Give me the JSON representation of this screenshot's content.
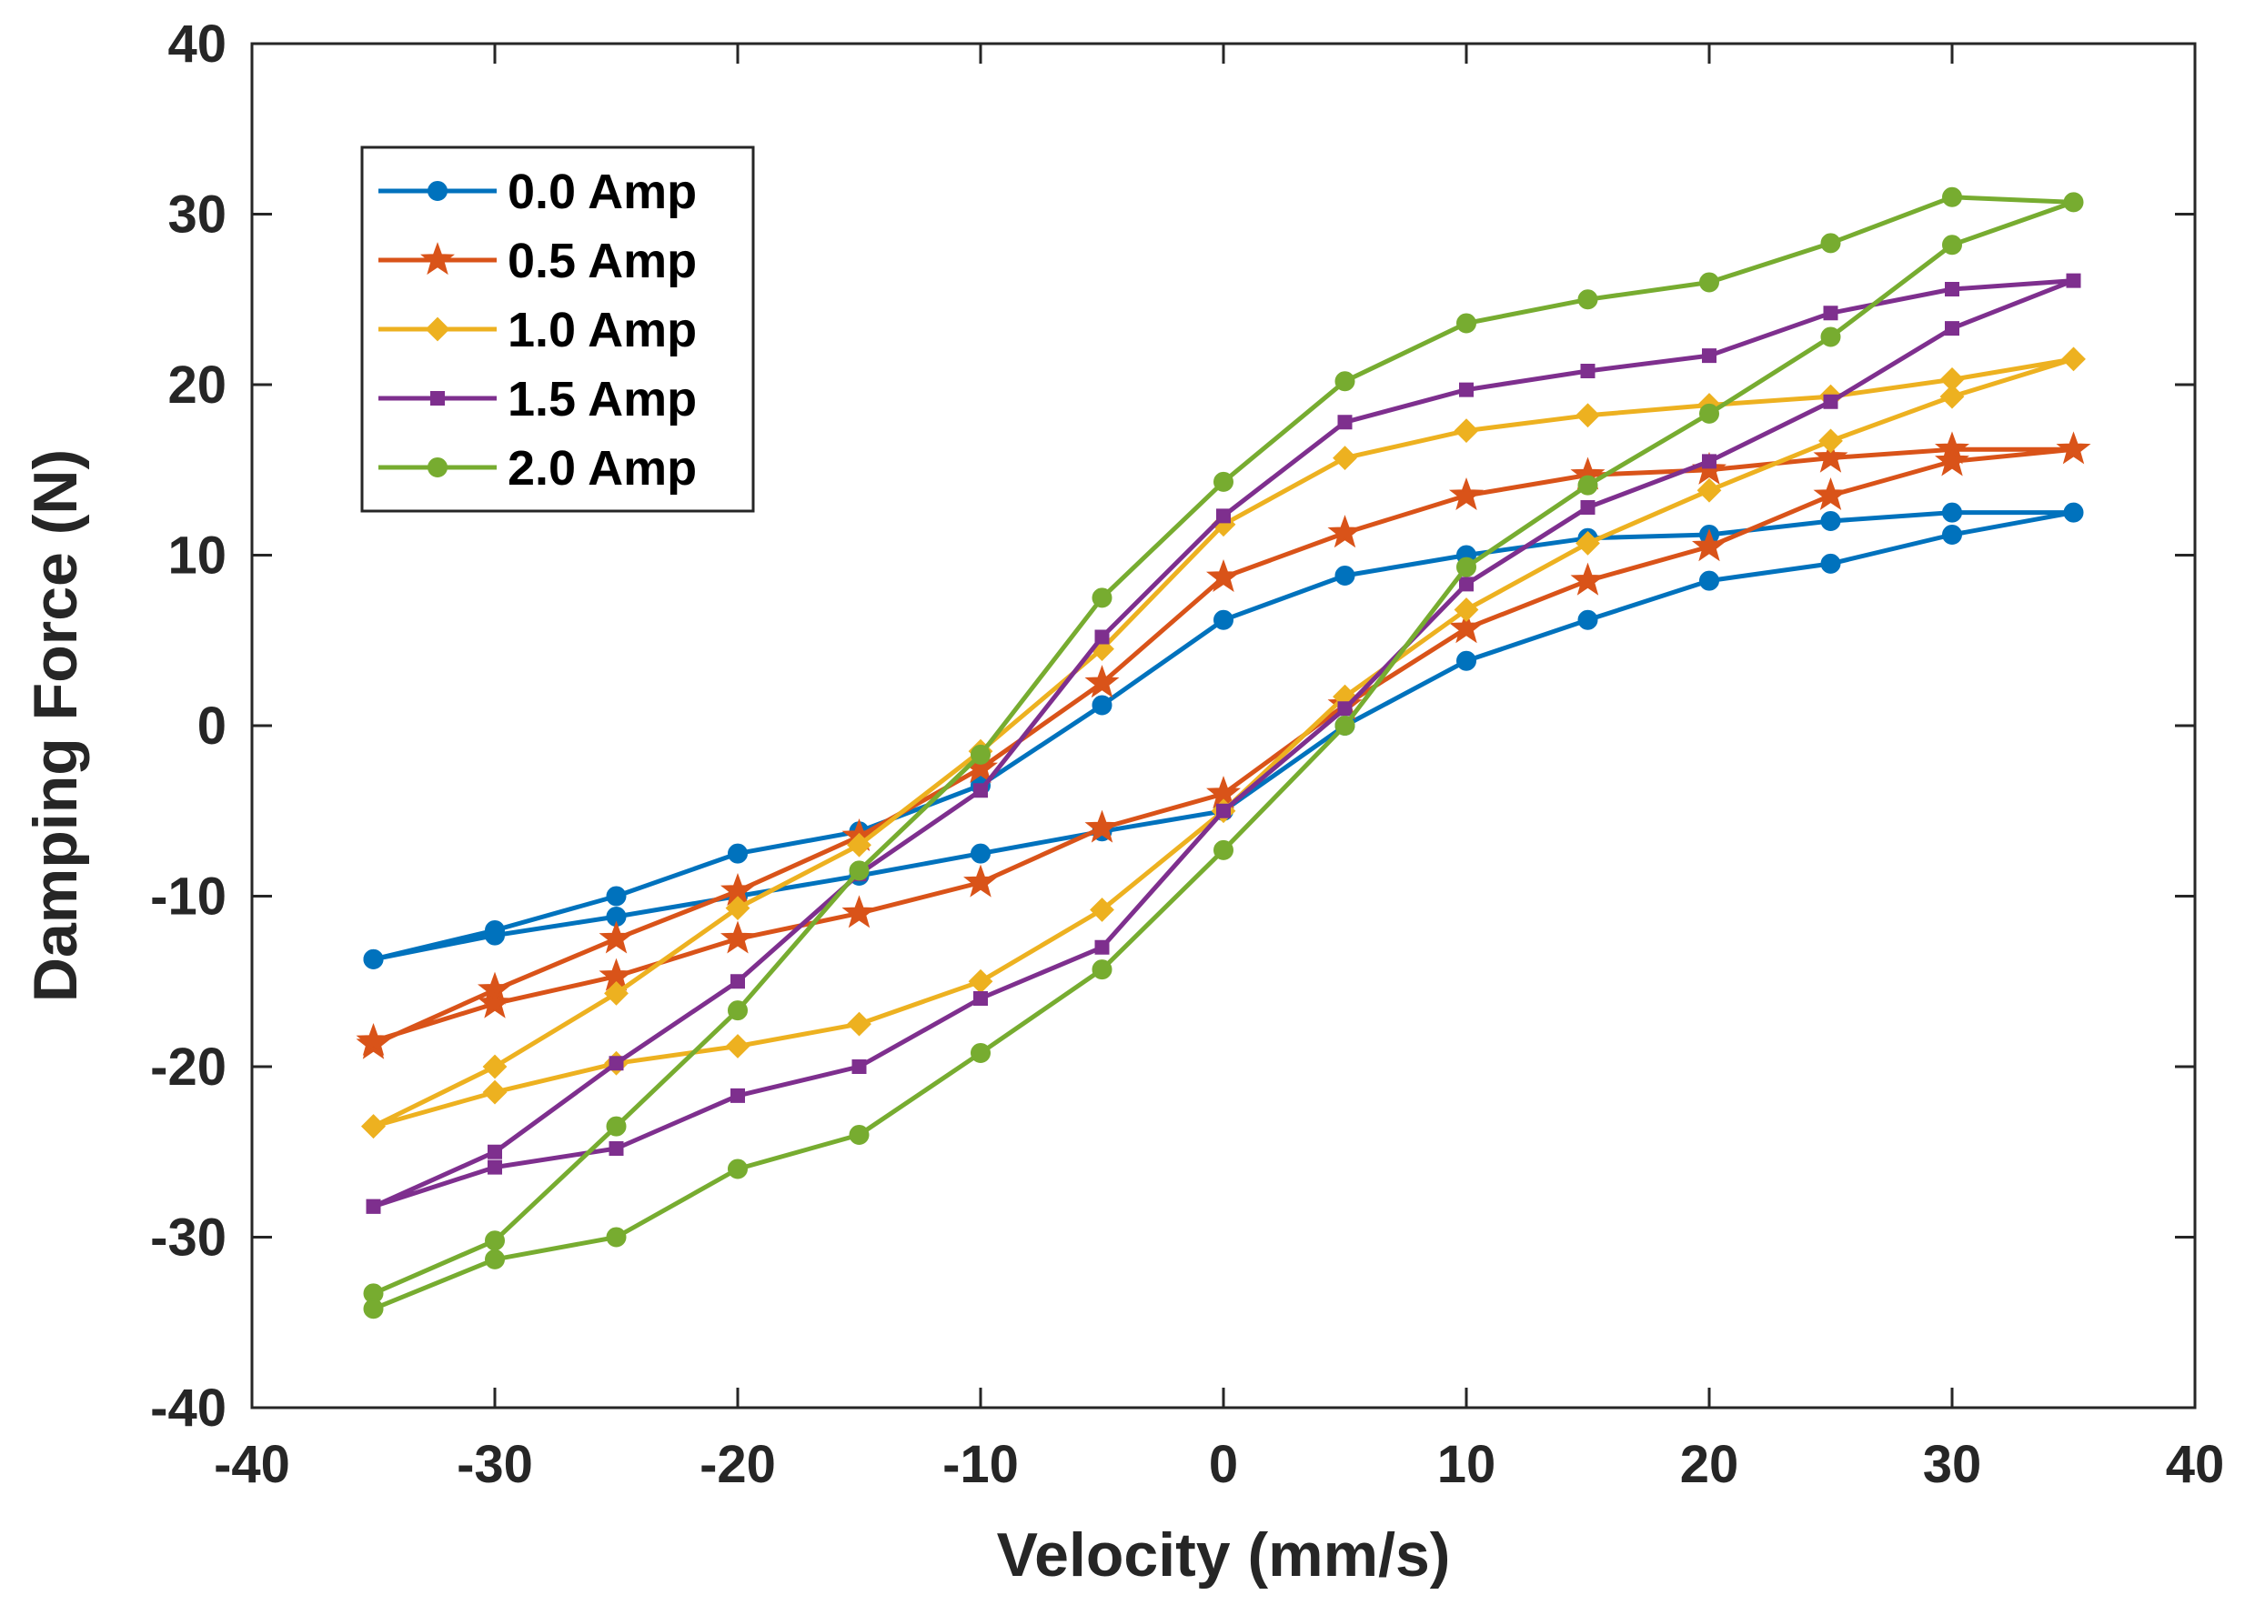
{
  "chart_data": {
    "type": "line",
    "title": "",
    "xlabel": "Velocity (mm/s)",
    "ylabel": "Damping Force (N)",
    "xlim": [
      -40,
      40
    ],
    "ylim": [
      -40,
      40
    ],
    "xticks": [
      -40,
      -30,
      -20,
      -10,
      0,
      10,
      20,
      30,
      40
    ],
    "yticks": [
      -40,
      -30,
      -20,
      -10,
      0,
      10,
      20,
      30,
      40
    ],
    "legend_position": "top-left",
    "x": [
      -35,
      -30,
      -25,
      -20,
      -15,
      -10,
      -5,
      0,
      5,
      10,
      15,
      20,
      25,
      30,
      35,
      30,
      25,
      20,
      15,
      10,
      5,
      0,
      -5,
      -10,
      -15,
      -20,
      -25,
      -30,
      -35
    ],
    "series": [
      {
        "name": "0.0 Amp",
        "color": "#0072BD",
        "marker": "circle",
        "values": [
          -13.7,
          -12.0,
          -10.0,
          -7.5,
          -6.2,
          -3.5,
          1.2,
          6.2,
          8.8,
          10.0,
          11.0,
          11.2,
          12.0,
          12.5,
          12.5,
          11.2,
          9.5,
          8.5,
          6.2,
          3.8,
          0.0,
          -5.0,
          -6.2,
          -7.5,
          -8.8,
          -10.0,
          -11.2,
          -12.3,
          -13.7
        ]
      },
      {
        "name": "0.5 Amp",
        "color": "#D95319",
        "marker": "star",
        "values": [
          -18.7,
          -15.5,
          -12.5,
          -9.7,
          -6.5,
          -2.5,
          2.5,
          8.7,
          11.3,
          13.5,
          14.7,
          15.0,
          15.7,
          16.2,
          16.2,
          15.5,
          13.5,
          10.5,
          8.5,
          5.7,
          1.2,
          -4.0,
          -6.0,
          -9.2,
          -11.0,
          -12.5,
          -14.7,
          -16.3,
          -18.5
        ]
      },
      {
        "name": "1.0 Amp",
        "color": "#EDB120",
        "marker": "diamond",
        "values": [
          -23.5,
          -20.0,
          -15.7,
          -10.7,
          -7.0,
          -1.5,
          4.5,
          11.8,
          15.7,
          17.3,
          18.2,
          18.8,
          19.3,
          20.3,
          21.5,
          19.3,
          16.7,
          13.8,
          10.7,
          6.8,
          1.7,
          -5.0,
          -10.8,
          -15.0,
          -17.5,
          -18.8,
          -19.8,
          -21.5,
          -23.5
        ]
      },
      {
        "name": "1.5 Amp",
        "color": "#7E2F8E",
        "marker": "square",
        "values": [
          -28.2,
          -25.0,
          -19.8,
          -15.0,
          -8.7,
          -3.8,
          5.2,
          12.3,
          17.8,
          19.7,
          20.8,
          21.7,
          24.2,
          25.6,
          26.1,
          23.3,
          19.0,
          15.5,
          12.8,
          8.3,
          1.0,
          -5.0,
          -13.0,
          -16.0,
          -20.0,
          -21.7,
          -24.8,
          -25.9,
          -28.2
        ]
      },
      {
        "name": "2.0 Amp",
        "color": "#77AC30",
        "marker": "circle",
        "values": [
          -33.3,
          -30.2,
          -23.5,
          -16.7,
          -8.5,
          -1.7,
          7.5,
          14.3,
          20.2,
          23.6,
          25.0,
          26.0,
          28.3,
          31.0,
          30.7,
          28.2,
          22.8,
          18.3,
          14.1,
          9.3,
          0.0,
          -7.3,
          -14.3,
          -19.2,
          -24.0,
          -26.0,
          -30.0,
          -31.3,
          -34.2
        ]
      }
    ]
  }
}
